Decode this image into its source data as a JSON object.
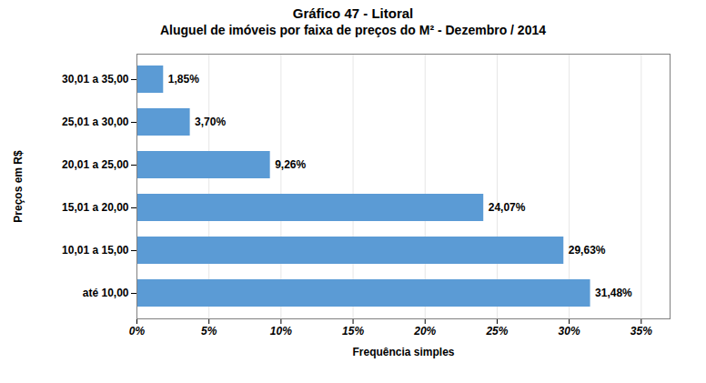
{
  "chart_data": {
    "type": "bar",
    "orientation": "horizontal",
    "title": "Gráfico 47 - Litoral",
    "subtitle": "Aluguel de imóveis por faixa de preços do M² - Dezembro / 2014",
    "categories": [
      "até 10,00",
      "10,01 a 15,00",
      "15,01 a 20,00",
      "20,01 a 25,00",
      "25,01 a 30,00",
      "30,01 a 35,00"
    ],
    "values": [
      31.48,
      29.63,
      24.07,
      9.26,
      3.7,
      1.85
    ],
    "value_labels": [
      "31,48%",
      "29,63%",
      "24,07%",
      "9,26%",
      "3,70%",
      "1,85%"
    ],
    "data_labels": true,
    "color": "#5B9BD5",
    "xlabel": "Frequência simples",
    "ylabel": "Preços em R$",
    "xlim": [
      0,
      37
    ],
    "xticks": [
      {
        "value": 0,
        "label": "0%"
      },
      {
        "value": 5,
        "label": "5%"
      },
      {
        "value": 10,
        "label": "10%"
      },
      {
        "value": 15,
        "label": "15%"
      },
      {
        "value": 20,
        "label": "20%"
      },
      {
        "value": 25,
        "label": "25%"
      },
      {
        "value": 30,
        "label": "30%"
      },
      {
        "value": 35,
        "label": "35%"
      }
    ],
    "grid": true
  }
}
